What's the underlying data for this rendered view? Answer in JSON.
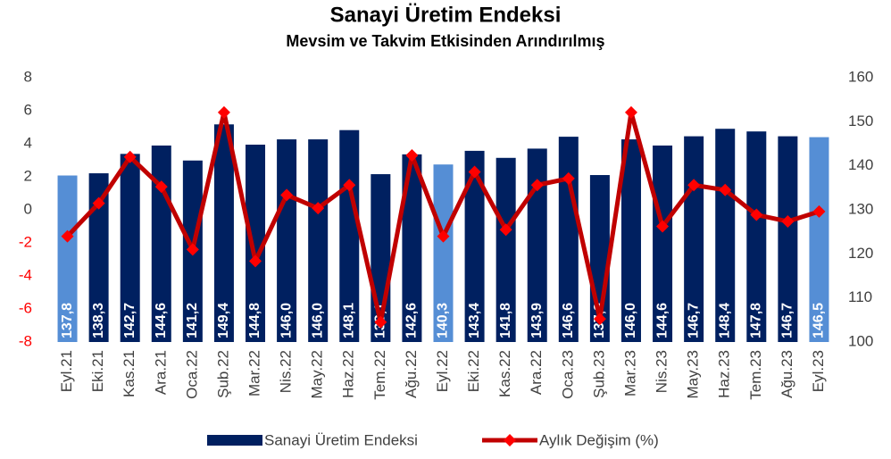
{
  "chart_data": {
    "type": "bar_line",
    "title": "Sanayi Üretim Endeksi",
    "subtitle": "Mevsim ve Takvim Etkisinden Arındırılmış",
    "categories": [
      "Eyl.21",
      "Eki.21",
      "Kas.21",
      "Ara.21",
      "Oca.22",
      "Şub.22",
      "Mar.22",
      "Nis.22",
      "May.22",
      "Haz.22",
      "Tem.22",
      "Ağu.22",
      "Eyl.22",
      "Eki.22",
      "Kas.22",
      "Ara.22",
      "Oca.23",
      "Şub.23",
      "Mar.23",
      "Nis.23",
      "May.23",
      "Haz.23",
      "Tem.23",
      "Ağu.23",
      "Eyl.23"
    ],
    "series": [
      {
        "name": "Sanayi Üretim Endeksi",
        "type": "bar",
        "axis": "y2",
        "color": "#002060",
        "colors": [
          "#558ed5",
          "#002060",
          "#002060",
          "#002060",
          "#002060",
          "#002060",
          "#002060",
          "#002060",
          "#002060",
          "#002060",
          "#002060",
          "#002060",
          "#558ed5",
          "#002060",
          "#002060",
          "#002060",
          "#002060",
          "#002060",
          "#002060",
          "#002060",
          "#002060",
          "#002060",
          "#002060",
          "#002060",
          "#558ed5"
        ],
        "values": [
          137.8,
          138.3,
          142.7,
          144.6,
          141.2,
          149.4,
          144.8,
          146.0,
          146.0,
          148.1,
          138.1,
          142.6,
          140.3,
          143.4,
          141.8,
          143.9,
          146.6,
          137.9,
          146.0,
          144.6,
          146.7,
          148.4,
          147.8,
          146.7,
          146.5
        ],
        "value_labels": [
          "137,8",
          "138,3",
          "142,7",
          "144,6",
          "141,2",
          "149,4",
          "144,8",
          "146,0",
          "146,0",
          "148,1",
          "138,1",
          "142,6",
          "140,3",
          "143,4",
          "141,8",
          "143,9",
          "146,6",
          "137,9",
          "146,0",
          "144,6",
          "146,7",
          "148,4",
          "147,8",
          "146,7",
          "146,5"
        ]
      },
      {
        "name": "Aylık Değişim (%)",
        "type": "line",
        "color": "#c00000",
        "values": [
          -1.6,
          0.4,
          3.2,
          1.4,
          -2.4,
          5.9,
          -3.1,
          0.9,
          0.1,
          1.5,
          -6.8,
          3.3,
          -1.6,
          2.3,
          -1.2,
          1.5,
          1.9,
          -6.6,
          5.9,
          -1.0,
          1.5,
          1.2,
          -0.3,
          -0.7,
          -0.1
        ]
      }
    ],
    "ylim": [
      -8,
      8
    ],
    "yticks": [
      -8,
      -6,
      -4,
      -2,
      0,
      2,
      4,
      6,
      8
    ],
    "negative_tick_color": "#ff0000",
    "y2lim": [
      100,
      160
    ],
    "y2ticks": [
      100,
      110,
      120,
      130,
      140,
      150,
      160
    ],
    "legend": "bottom"
  }
}
